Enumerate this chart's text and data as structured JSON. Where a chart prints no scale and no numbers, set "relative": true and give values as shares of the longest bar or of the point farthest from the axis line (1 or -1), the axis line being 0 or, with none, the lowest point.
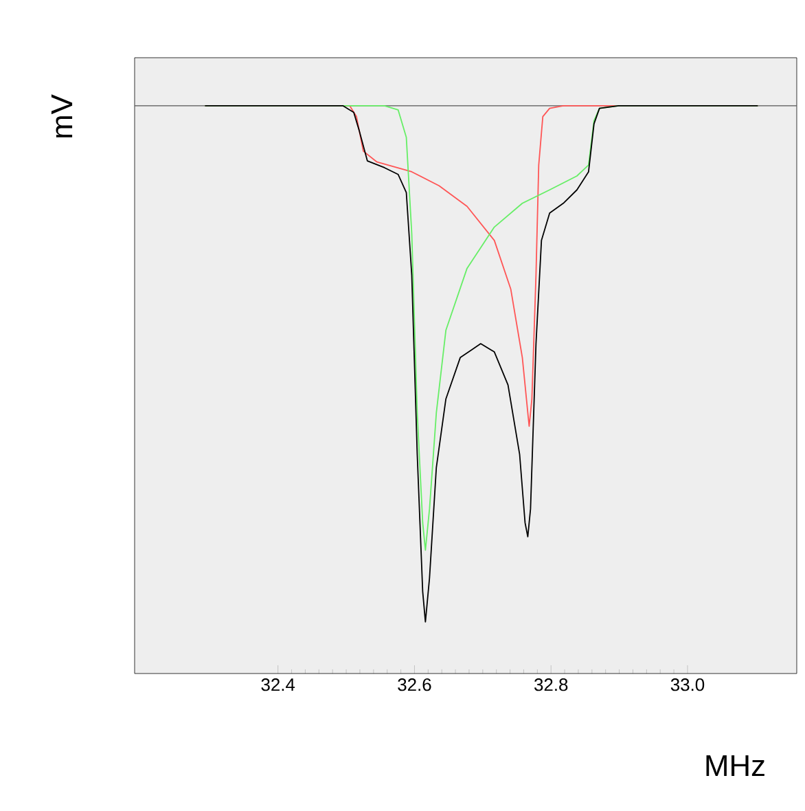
{
  "chart_data": {
    "type": "line",
    "relative": true,
    "xlabel": "MHz",
    "ylabel": "mV",
    "xlim": [
      32.19,
      33.16
    ],
    "xticks": [
      32.4,
      32.6,
      32.8,
      {
        "value": 33.0,
        "label": "33.0"
      }
    ],
    "tick_labels": "x",
    "grid": false,
    "marker": "none",
    "line_style": "solid",
    "ref_lines": [
      {
        "axis": "y",
        "value": 0,
        "color": "#555555"
      }
    ],
    "series": [
      {
        "color": "#ff5555",
        "x": [
          32.293,
          32.505,
          32.515,
          32.525,
          32.545,
          32.596,
          32.636,
          32.677,
          32.717,
          32.741,
          32.758,
          32.766,
          32.768,
          32.772,
          32.778,
          32.782,
          32.788,
          32.798,
          32.818,
          33.103
        ],
        "values": [
          0,
          0,
          -0.021,
          -0.088,
          -0.109,
          -0.128,
          -0.155,
          -0.195,
          -0.261,
          -0.355,
          -0.488,
          -0.595,
          -0.621,
          -0.568,
          -0.328,
          -0.115,
          -0.021,
          -0.005,
          0,
          0
        ]
      },
      {
        "color": "#66ee66",
        "x": [
          32.293,
          32.556,
          32.576,
          32.588,
          32.596,
          32.604,
          32.612,
          32.616,
          32.622,
          32.632,
          32.646,
          32.677,
          32.717,
          32.758,
          32.798,
          32.838,
          32.855,
          32.863,
          32.871,
          32.899,
          33.103
        ],
        "values": [
          0,
          0,
          -0.008,
          -0.061,
          -0.248,
          -0.595,
          -0.808,
          -0.861,
          -0.781,
          -0.595,
          -0.435,
          -0.315,
          -0.235,
          -0.189,
          -0.163,
          -0.136,
          -0.115,
          -0.029,
          -0.005,
          0,
          0
        ]
      },
      {
        "color": "#000000",
        "x": [
          32.293,
          32.495,
          32.511,
          32.519,
          32.531,
          32.556,
          32.576,
          32.588,
          32.596,
          32.604,
          32.612,
          32.616,
          32.622,
          32.632,
          32.646,
          32.667,
          32.697,
          32.717,
          32.737,
          32.754,
          32.762,
          32.766,
          32.77,
          32.778,
          32.786,
          32.798,
          32.818,
          32.838,
          32.855,
          32.863,
          32.871,
          32.899,
          33.103
        ],
        "values": [
          0,
          0,
          -0.013,
          -0.048,
          -0.107,
          -0.12,
          -0.133,
          -0.168,
          -0.328,
          -0.675,
          -0.941,
          -1,
          -0.915,
          -0.701,
          -0.568,
          -0.488,
          -0.461,
          -0.477,
          -0.541,
          -0.675,
          -0.808,
          -0.835,
          -0.781,
          -0.461,
          -0.261,
          -0.208,
          -0.189,
          -0.163,
          -0.128,
          -0.035,
          -0.005,
          0,
          0
        ]
      }
    ]
  }
}
